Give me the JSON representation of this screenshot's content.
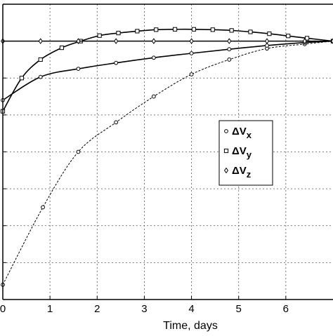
{
  "chart_data": {
    "type": "line",
    "title": "",
    "xlabel": "Time, days",
    "ylabel": "",
    "xlim": [
      0,
      7
    ],
    "ylim": [
      -7,
      1
    ],
    "x_ticks": [
      0,
      1,
      2,
      3,
      4,
      5,
      6
    ],
    "x_tick_labels": [
      "0",
      "1",
      "2",
      "3",
      "4",
      "5",
      "6"
    ],
    "y_ticks": [
      -6,
      -5,
      -4,
      -3,
      -2,
      -1,
      0
    ],
    "grid": true,
    "legend_placement": "center-right",
    "legend": [
      {
        "marker": "circle",
        "base": "ΔV",
        "sub": "x"
      },
      {
        "marker": "square",
        "base": "ΔV",
        "sub": "y"
      },
      {
        "marker": "diamond",
        "base": "ΔV",
        "sub": "z"
      }
    ],
    "series": [
      {
        "marker": "circle",
        "dashed": true,
        "x": [
          0,
          0.85,
          1.6,
          2.4,
          3.2,
          4.0,
          4.8,
          5.6,
          6.4,
          7.0
        ],
        "y": [
          -6.6,
          -4.5,
          -3.0,
          -2.2,
          -1.5,
          -0.9,
          -0.5,
          -0.2,
          -0.08,
          0
        ]
      },
      {
        "marker": "square",
        "dashed": false,
        "x": [
          0,
          0.4,
          0.8,
          1.25,
          1.65,
          2.05,
          2.45,
          2.85,
          3.25,
          3.65,
          4.05,
          4.45,
          4.85,
          5.25,
          5.65,
          6.05,
          6.45,
          7.0
        ],
        "y": [
          -1.9,
          -1.0,
          -0.5,
          -0.18,
          0.0,
          0.15,
          0.22,
          0.27,
          0.31,
          0.32,
          0.32,
          0.31,
          0.29,
          0.25,
          0.2,
          0.14,
          0.08,
          0
        ]
      },
      {
        "marker": "circle",
        "dashed": false,
        "x": [
          0,
          0.8,
          1.6,
          2.4,
          3.2,
          4.0,
          4.8,
          5.6,
          6.4,
          7.0
        ],
        "y": [
          -1.6,
          -0.97,
          -0.75,
          -0.59,
          -0.45,
          -0.33,
          -0.22,
          -0.12,
          -0.04,
          0
        ]
      },
      {
        "marker": "diamond",
        "dashed": false,
        "x": [
          0,
          0.8,
          1.6,
          2.4,
          3.2,
          4.0,
          4.8,
          5.6,
          6.4,
          7.0
        ],
        "y": [
          0,
          0,
          0,
          0,
          0,
          0,
          0,
          0,
          0,
          0
        ]
      }
    ]
  }
}
